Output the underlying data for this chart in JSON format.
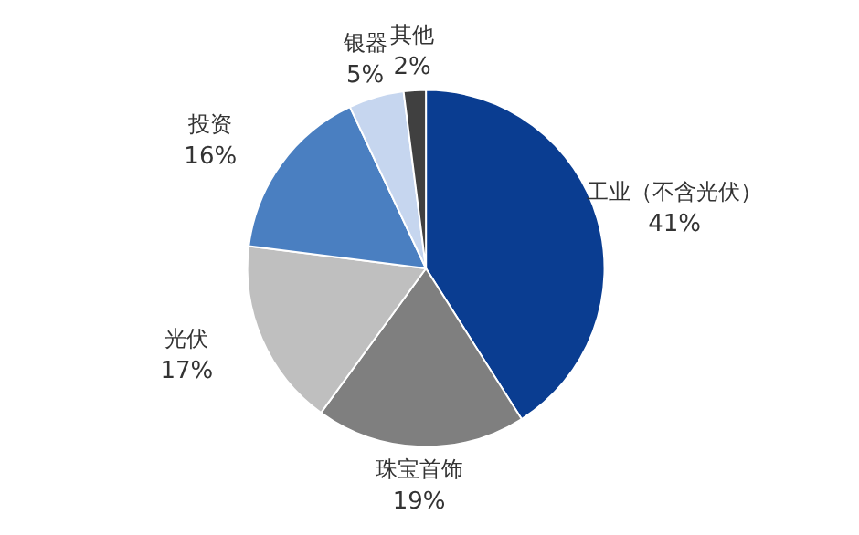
{
  "chart_data": {
    "type": "pie",
    "categories": [
      "工业（不含光伏）",
      "珠宝首饰",
      "光伏",
      "投资",
      "银器",
      "其他"
    ],
    "values": [
      41,
      19,
      17,
      16,
      5,
      2
    ],
    "colors": [
      "#0a3d91",
      "#7f7f7f",
      "#bfbfbf",
      "#4a7fc1",
      "#c6d6ef",
      "#404040"
    ],
    "value_labels": [
      "41%",
      "19%",
      "17%",
      "16%",
      "5%",
      "2%"
    ]
  }
}
